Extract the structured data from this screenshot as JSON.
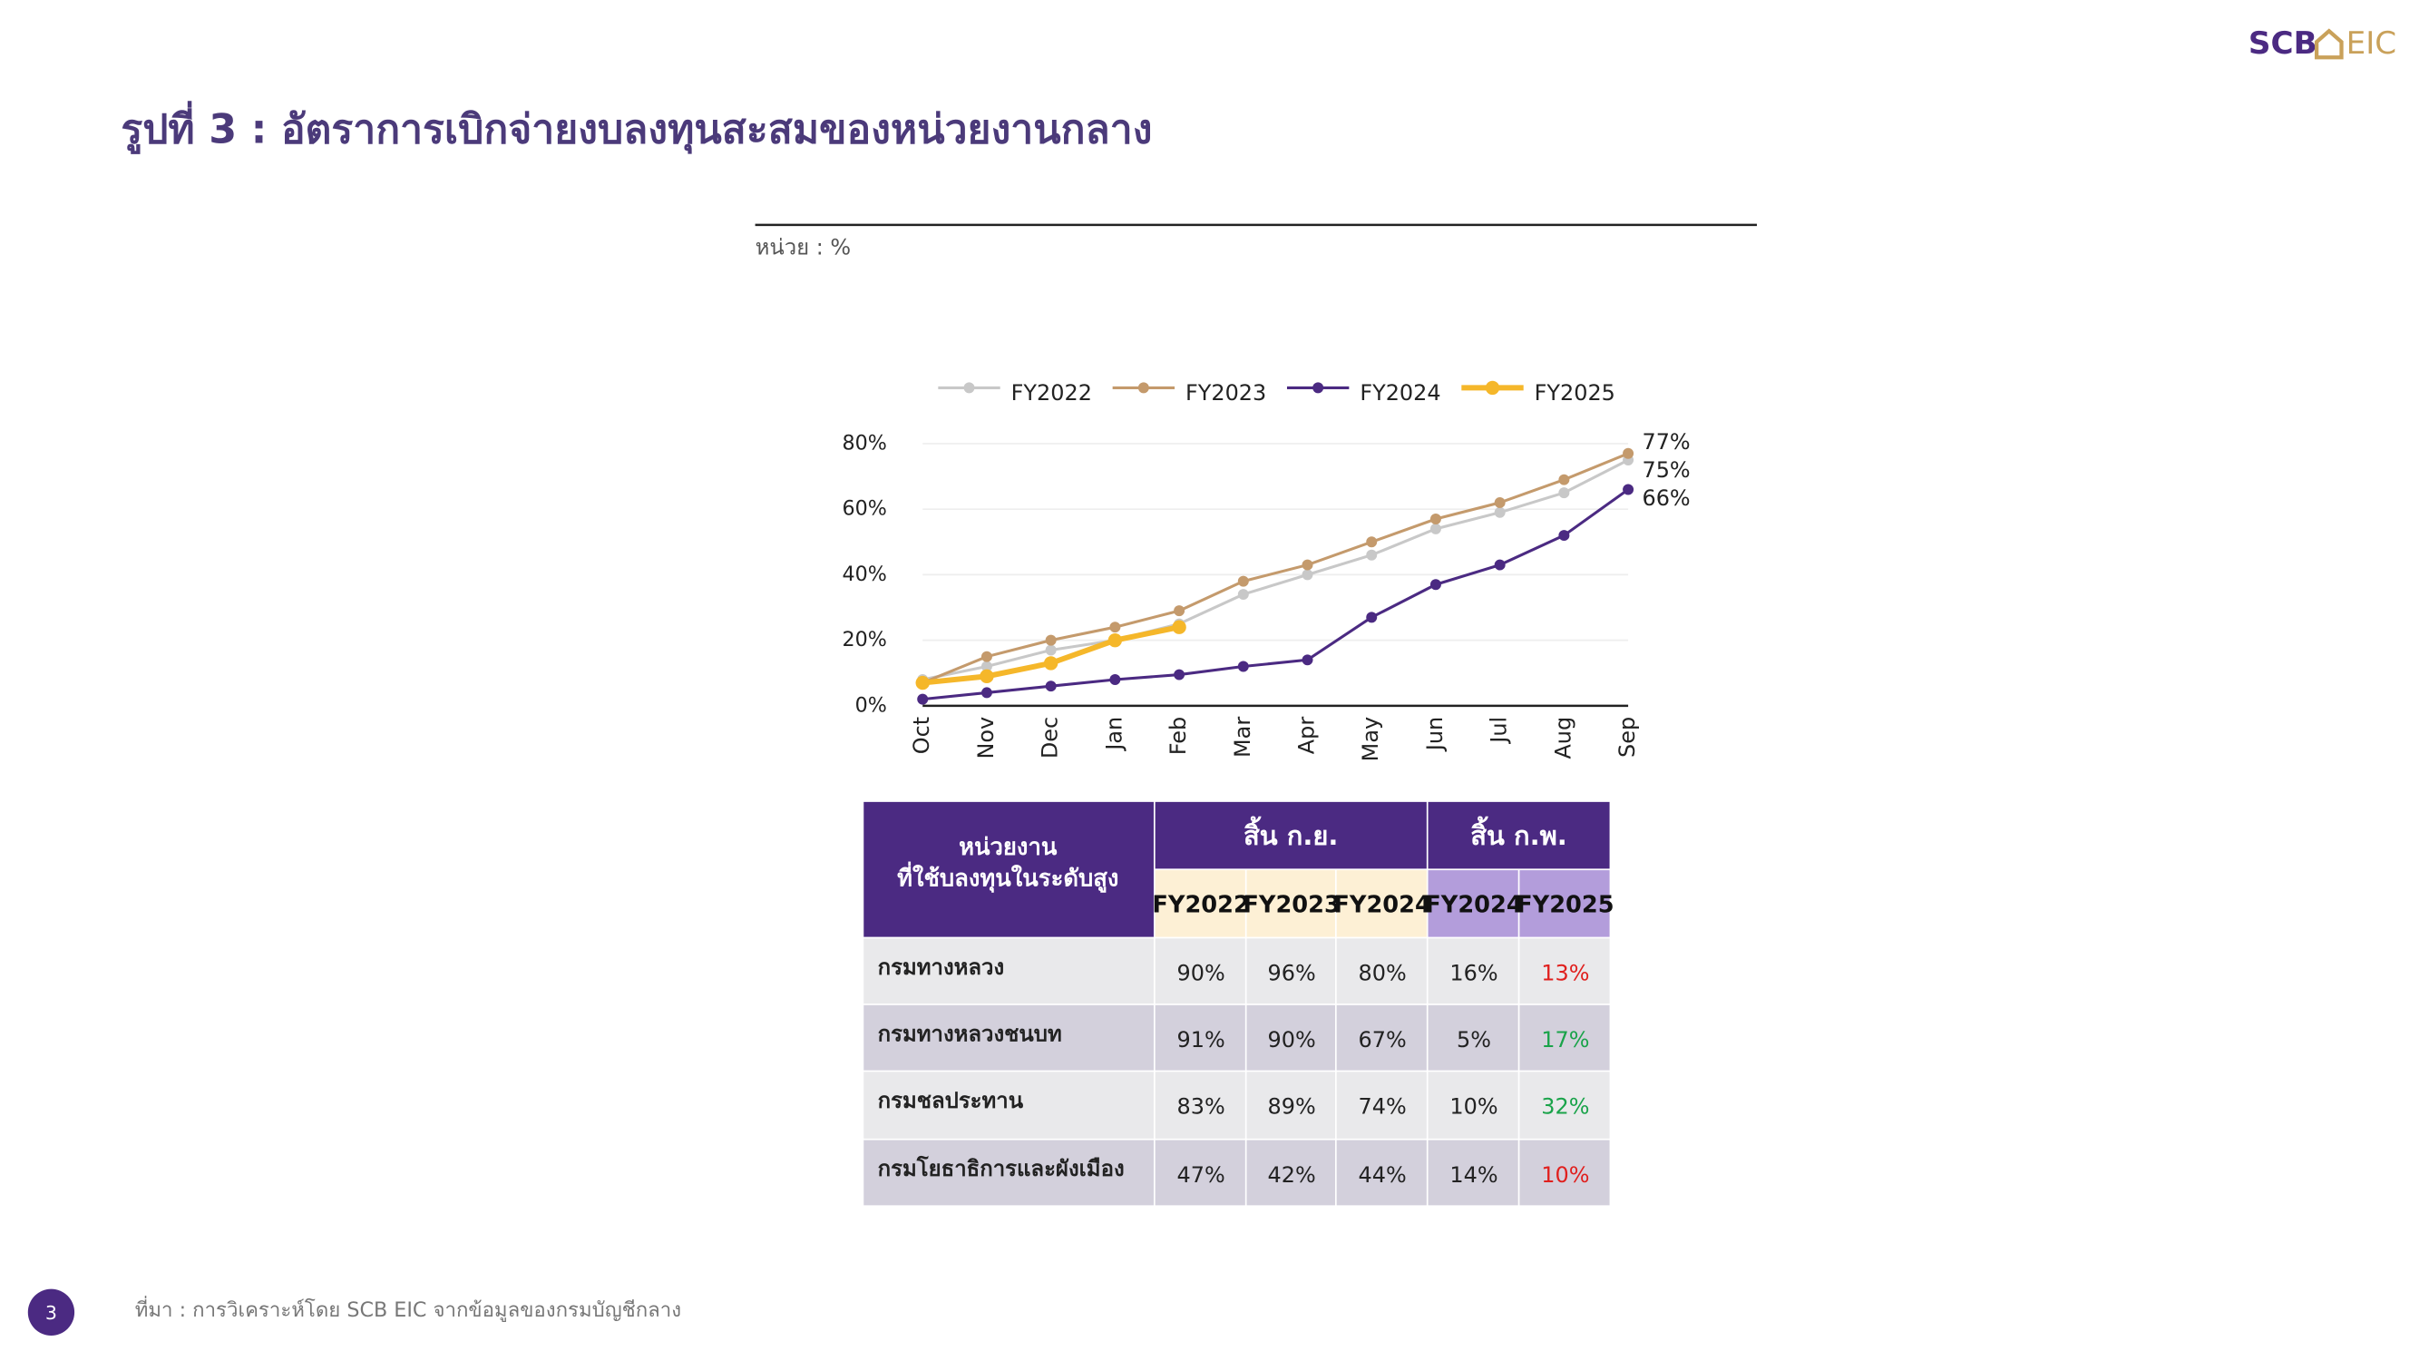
{
  "header": {
    "title": "รูปที่ 3 : อัตราการเบิกจ่ายงบลงทุนสะสมของหน่วยงานกลาง",
    "unit": "หน่วย : %",
    "logo_left": "SCB",
    "logo_right": "EIC"
  },
  "chart_data": {
    "type": "line",
    "categories": [
      "Oct",
      "Nov",
      "Dec",
      "Jan",
      "Feb",
      "Mar",
      "Apr",
      "May",
      "Jun",
      "Jul",
      "Aug",
      "Sep"
    ],
    "series": [
      {
        "name": "FY2022",
        "color": "#c8c8c8",
        "values": [
          8,
          12,
          17,
          20,
          25,
          34,
          40,
          46,
          54,
          59,
          65,
          75
        ],
        "value_labels": [
          null,
          null,
          null,
          null,
          null,
          null,
          null,
          null,
          null,
          null,
          null,
          "75%"
        ]
      },
      {
        "name": "FY2023",
        "color": "#c49a6c",
        "values": [
          7,
          15,
          20,
          24,
          29,
          38,
          43,
          50,
          57,
          62,
          69,
          77
        ],
        "value_labels": [
          null,
          null,
          null,
          null,
          null,
          null,
          null,
          null,
          null,
          null,
          null,
          "77%"
        ]
      },
      {
        "name": "FY2024",
        "color": "#4b2a82",
        "values": [
          2,
          4,
          6,
          8,
          9.5,
          12,
          14,
          27,
          37,
          43,
          52,
          66
        ],
        "value_labels": [
          null,
          null,
          null,
          null,
          null,
          null,
          null,
          null,
          null,
          null,
          null,
          "66%"
        ]
      },
      {
        "name": "FY2025",
        "color": "#f5b72a",
        "values": [
          7,
          9,
          13,
          20,
          24,
          null,
          null,
          null,
          null,
          null,
          null,
          null
        ]
      }
    ],
    "ylim": [
      0,
      80
    ],
    "yticks": [
      {
        "value": 0,
        "label": "0%"
      },
      {
        "value": 20,
        "label": "20%"
      },
      {
        "value": 40,
        "label": "40%"
      },
      {
        "value": 60,
        "label": "60%"
      },
      {
        "value": 80,
        "label": "80%"
      }
    ],
    "grid": true,
    "legend": "top"
  },
  "table": {
    "header": [
      "หน่วยงาน",
      "ที่ใช้บลงทุนในระดับสูง"
    ],
    "groups": [
      {
        "label": "สิ้น ก.ย.",
        "span": 3
      },
      {
        "label": "สิ้น ก.พ.",
        "span": 2
      }
    ],
    "columns": [
      "FY2022",
      "FY2023",
      "FY2024",
      "FY2024",
      "FY2025"
    ],
    "rows": [
      {
        "name": "กรมทางหลวง",
        "cells": [
          "90%",
          "96%",
          "80%",
          "16%",
          "13%"
        ],
        "highlight_color": "#e0201e"
      },
      {
        "name": "กรมทางหลวงชนบท",
        "cells": [
          "91%",
          "90%",
          "67%",
          "5%",
          "17%"
        ],
        "highlight_color": "#1aa34a"
      },
      {
        "name": "กรมชลประทาน",
        "cells": [
          "83%",
          "89%",
          "74%",
          "10%",
          "32%"
        ],
        "highlight_color": "#1aa34a"
      },
      {
        "name": "กรมโยธาธิการและผังเมือง",
        "cells": [
          "47%",
          "42%",
          "44%",
          "14%",
          "10%"
        ],
        "highlight_color": "#e0201e"
      }
    ]
  },
  "footer": {
    "source": "ที่มา : การวิเคราะห์โดย SCB EIC จากข้อมูลของกรมบัญชีกลาง",
    "page": "3"
  }
}
